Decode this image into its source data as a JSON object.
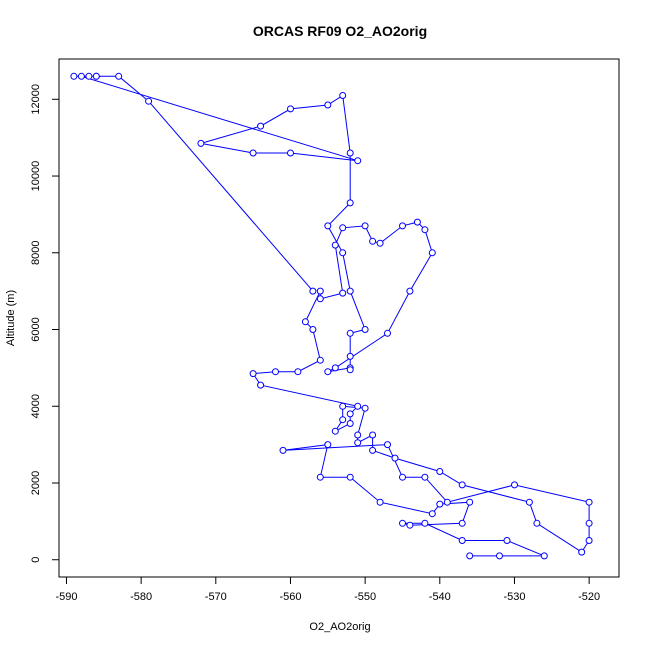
{
  "chart_data": {
    "type": "line",
    "title": "ORCAS RF09 O2_AO2orig",
    "xlabel": "O2_AO2orig",
    "ylabel": "Altitude (m)",
    "xlim": [
      -591,
      -516
    ],
    "ylim": [
      -450,
      13050
    ],
    "x_ticks": [
      -590,
      -580,
      -570,
      -560,
      -550,
      -540,
      -530,
      -520
    ],
    "y_ticks": [
      0,
      2000,
      4000,
      6000,
      8000,
      10000,
      12000
    ],
    "grid": false,
    "markers": "open-circle",
    "color": "#0000ff",
    "series": [
      {
        "x": [
          -536,
          -532,
          -526,
          -531,
          -537,
          -542,
          -545,
          -544,
          -537,
          -536,
          -540,
          -541,
          -548,
          -552,
          -556,
          -555,
          -561,
          -547,
          -545,
          -542,
          -539,
          -530,
          -520,
          -520,
          -520,
          -521,
          -527,
          -528,
          -537,
          -540,
          -546,
          -549,
          -549,
          -551,
          -551,
          -550,
          -553,
          -553,
          -554,
          -552,
          -552,
          -551,
          -564,
          -565,
          -562,
          -559,
          -556,
          -557,
          -558,
          -556,
          -556,
          -553,
          -554,
          -553,
          -550,
          -549,
          -548,
          -545,
          -543,
          -542,
          -541,
          -544,
          -547,
          -554,
          -555,
          -552,
          -552,
          -552,
          -552,
          -550,
          -552,
          -553,
          -555,
          -552,
          -552,
          -553,
          -555,
          -560,
          -564,
          -572,
          -565,
          -560,
          -551,
          -588,
          -589,
          -587,
          -586,
          -586,
          -583,
          -579,
          -557
        ],
        "y": [
          100,
          100,
          100,
          500,
          500,
          950,
          950,
          900,
          950,
          1500,
          1450,
          1200,
          1500,
          2150,
          2150,
          3000,
          2850,
          3000,
          2150,
          2150,
          1500,
          1950,
          1500,
          950,
          500,
          200,
          950,
          1500,
          1950,
          2300,
          2650,
          2850,
          3250,
          3050,
          3250,
          3950,
          4000,
          3650,
          3350,
          3550,
          3800,
          4000,
          4550,
          4850,
          4900,
          4900,
          5200,
          6000,
          6200,
          7000,
          6800,
          6950,
          8200,
          8650,
          8700,
          8300,
          8250,
          8700,
          8800,
          8600,
          8000,
          7000,
          5900,
          5000,
          4900,
          5000,
          4950,
          5300,
          5900,
          6000,
          7000,
          8000,
          8700,
          9300,
          10600,
          12100,
          11850,
          11750,
          11300,
          10850,
          10600,
          10600,
          10400,
          12600,
          12600,
          12600,
          12600,
          12600,
          12600,
          11950,
          7000
        ]
      }
    ]
  }
}
